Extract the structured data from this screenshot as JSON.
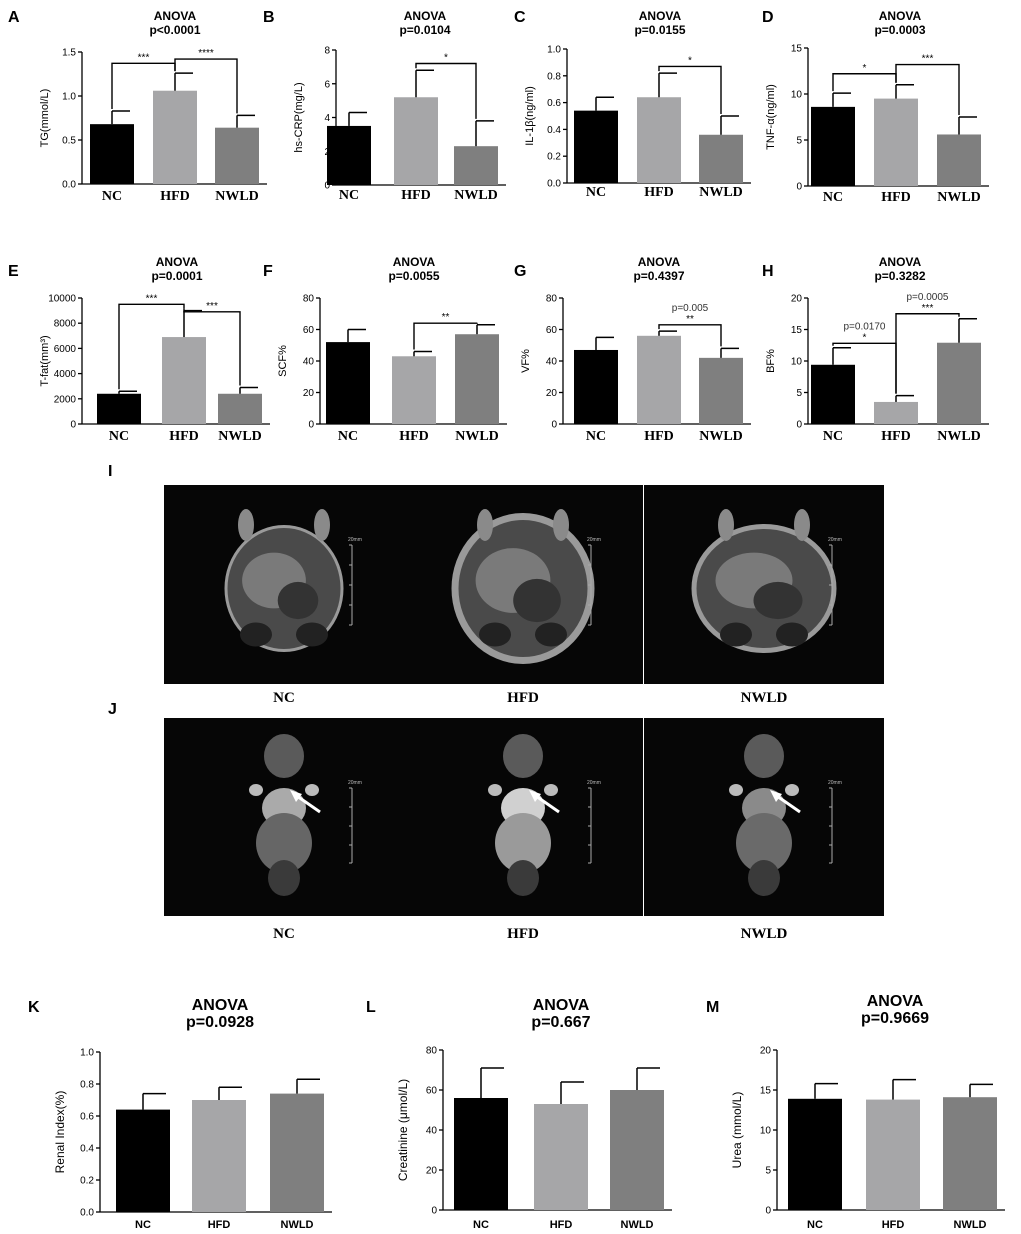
{
  "chart_data": [
    {
      "letter": "A",
      "type": "bar",
      "title": "ANOVA",
      "subtitle": "p<0.0001",
      "ylabel": "TG(mmol/L)",
      "categories": [
        "NC",
        "HFD",
        "NWLD"
      ],
      "values": [
        0.68,
        1.06,
        0.64
      ],
      "errors": [
        0.15,
        0.2,
        0.14
      ],
      "ylim": [
        0,
        1.5
      ],
      "ticks": [
        "0.0",
        "0.5",
        "1.0",
        "1.5"
      ],
      "sig": [
        {
          "label": "***",
          "from": 0,
          "to": 1
        },
        {
          "label": "****",
          "from": 1,
          "to": 2
        }
      ]
    },
    {
      "letter": "B",
      "type": "bar",
      "title": "ANOVA",
      "subtitle": "p=0.0104",
      "ylabel": "hs-CRP(mg/L)",
      "categories": [
        "NC",
        "HFD",
        "NWLD"
      ],
      "values": [
        3.5,
        5.2,
        2.3
      ],
      "errors": [
        0.8,
        1.6,
        1.5
      ],
      "ylim": [
        0,
        8
      ],
      "ticks": [
        "0",
        "2",
        "4",
        "6",
        "8"
      ],
      "sig": [
        {
          "label": "*",
          "from": 1,
          "to": 2
        }
      ]
    },
    {
      "letter": "C",
      "type": "bar",
      "title": "ANOVA",
      "subtitle": "p=0.0155",
      "ylabel": "IL-1β(ng/ml)",
      "categories": [
        "NC",
        "HFD",
        "NWLD"
      ],
      "values": [
        0.54,
        0.64,
        0.36
      ],
      "errors": [
        0.1,
        0.18,
        0.14
      ],
      "ylim": [
        0,
        1.0
      ],
      "ticks": [
        "0.0",
        "0.2",
        "0.4",
        "0.6",
        "0.8",
        "1.0"
      ],
      "sig": [
        {
          "label": "*",
          "from": 1,
          "to": 2
        }
      ]
    },
    {
      "letter": "D",
      "type": "bar",
      "title": "ANOVA",
      "subtitle": "p=0.0003",
      "ylabel": "TNF-α(ng/ml)",
      "categories": [
        "NC",
        "HFD",
        "NWLD"
      ],
      "values": [
        8.6,
        9.5,
        5.6
      ],
      "errors": [
        1.5,
        1.5,
        1.9
      ],
      "ylim": [
        0,
        15
      ],
      "ticks": [
        "0",
        "5",
        "10",
        "15"
      ],
      "sig": [
        {
          "label": "*",
          "from": 0,
          "to": 1
        },
        {
          "label": "***",
          "from": 1,
          "to": 2
        }
      ]
    },
    {
      "letter": "E",
      "type": "bar",
      "title": "ANOVA",
      "subtitle": "p=0.0001",
      "ylabel": "T-fat(mm³)",
      "categories": [
        "NC",
        "HFD",
        "NWLD"
      ],
      "values": [
        2400,
        6900,
        2400
      ],
      "errors": [
        200,
        2100,
        500
      ],
      "ylim": [
        0,
        10000
      ],
      "ticks": [
        "0",
        "2000",
        "4000",
        "6000",
        "8000",
        "10000"
      ],
      "sig": [
        {
          "label": "***",
          "from": 0,
          "to": 1
        },
        {
          "label": "***",
          "from": 1,
          "to": 2
        }
      ]
    },
    {
      "letter": "F",
      "type": "bar",
      "title": "ANOVA",
      "subtitle": "p=0.0055",
      "ylabel": "SCF%",
      "categories": [
        "NC",
        "HFD",
        "NWLD"
      ],
      "values": [
        52,
        43,
        57
      ],
      "errors": [
        8,
        3,
        6
      ],
      "ylim": [
        0,
        80
      ],
      "ticks": [
        "0",
        "20",
        "40",
        "60",
        "80"
      ],
      "sig": [
        {
          "label": "**",
          "from": 1,
          "to": 2
        }
      ]
    },
    {
      "letter": "G",
      "type": "bar",
      "title": "ANOVA",
      "subtitle": "p=0.4397",
      "ylabel": "VF%",
      "categories": [
        "NC",
        "HFD",
        "NWLD"
      ],
      "values": [
        47,
        56,
        42
      ],
      "errors": [
        8,
        3,
        6
      ],
      "ylim": [
        0,
        80
      ],
      "ticks": [
        "0",
        "20",
        "40",
        "60",
        "80"
      ],
      "sig": [
        {
          "label": "**",
          "from": 1,
          "to": 2,
          "p": "p=0.005"
        }
      ]
    },
    {
      "letter": "H",
      "type": "bar",
      "title": "ANOVA",
      "subtitle": "p=0.3282",
      "ylabel": "BF%",
      "categories": [
        "NC",
        "HFD",
        "NWLD"
      ],
      "values": [
        9.4,
        3.5,
        12.9
      ],
      "errors": [
        2.7,
        1.0,
        3.8
      ],
      "ylim": [
        0,
        20
      ],
      "ticks": [
        "0",
        "5",
        "10",
        "15",
        "20"
      ],
      "sig": [
        {
          "label": "*",
          "from": 0,
          "to": 1,
          "p": "p=0.0170"
        },
        {
          "label": "***",
          "from": 1,
          "to": 2,
          "p": "p=0.0005"
        }
      ]
    },
    {
      "letter": "K",
      "type": "bar",
      "title": "ANOVA",
      "subtitle": "p=0.0928",
      "ylabel": "Renal Index(%)",
      "categories": [
        "NC",
        "HFD",
        "NWLD"
      ],
      "values": [
        0.64,
        0.7,
        0.74
      ],
      "errors": [
        0.1,
        0.08,
        0.09
      ],
      "ylim": [
        0,
        1.0
      ],
      "ticks": [
        "0.0",
        "0.2",
        "0.4",
        "0.6",
        "0.8",
        "1.0"
      ],
      "sig": []
    },
    {
      "letter": "L",
      "type": "bar",
      "title": "ANOVA",
      "subtitle": "p=0.667",
      "ylabel": "Creatinine (μmol/L)",
      "categories": [
        "NC",
        "HFD",
        "NWLD"
      ],
      "values": [
        56,
        53,
        60
      ],
      "errors": [
        15,
        11,
        11
      ],
      "ylim": [
        0,
        80
      ],
      "ticks": [
        "0",
        "20",
        "40",
        "60",
        "80"
      ],
      "sig": []
    },
    {
      "letter": "M",
      "type": "bar",
      "title": "ANOVA",
      "subtitle": "p=0.9669",
      "ylabel": "Urea (mmol/L)",
      "categories": [
        "NC",
        "HFD",
        "NWLD"
      ],
      "values": [
        13.9,
        13.8,
        14.1
      ],
      "errors": [
        1.9,
        2.5,
        1.6
      ],
      "ylim": [
        0,
        20
      ],
      "ticks": [
        "0",
        "5",
        "10",
        "15",
        "20"
      ],
      "sig": []
    }
  ],
  "colors": {
    "NC": "#000000",
    "HFD": "#a6a6a8",
    "NWLD": "#7f7f7f"
  },
  "mri": {
    "I": {
      "letter": "I",
      "labels": [
        "NC",
        "HFD",
        "NWLD"
      ],
      "scale_text": "20mm"
    },
    "J": {
      "letter": "J",
      "labels": [
        "NC",
        "HFD",
        "NWLD"
      ],
      "scale_text": "20mm"
    }
  }
}
